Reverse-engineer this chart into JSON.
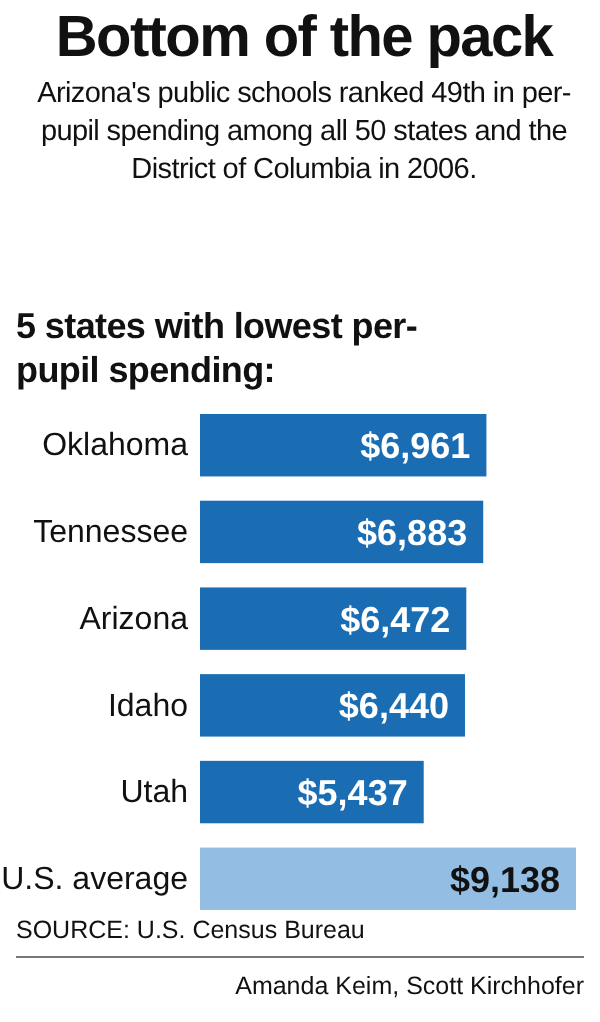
{
  "chart_data": {
    "type": "bar",
    "orientation": "horizontal",
    "title": "Bottom of the pack",
    "subtitle": "Arizona's public schools ranked 49th in per-pupil spending among all 50 states and the District of Columbia in 2006.",
    "categories": [
      "Oklahoma",
      "Tennessee",
      "Arizona",
      "Idaho",
      "Utah",
      "U.S. average"
    ],
    "values": [
      6961,
      6883,
      6472,
      6440,
      5437,
      9138
    ],
    "value_labels": [
      "$6,961",
      "$6,883",
      "$6,472",
      "$6,440",
      "$5,437",
      "$9,138"
    ],
    "colors": [
      "#1a6db3",
      "#1a6db3",
      "#1a6db3",
      "#1a6db3",
      "#1a6db3",
      "#93bde3"
    ],
    "tick_labels": "y",
    "annotations": [
      "5 states with lowest per-pupil spending:",
      "SOURCE: U.S. Census Bureau",
      "Amanda Keim, Scott Kirchhofer"
    ]
  }
}
